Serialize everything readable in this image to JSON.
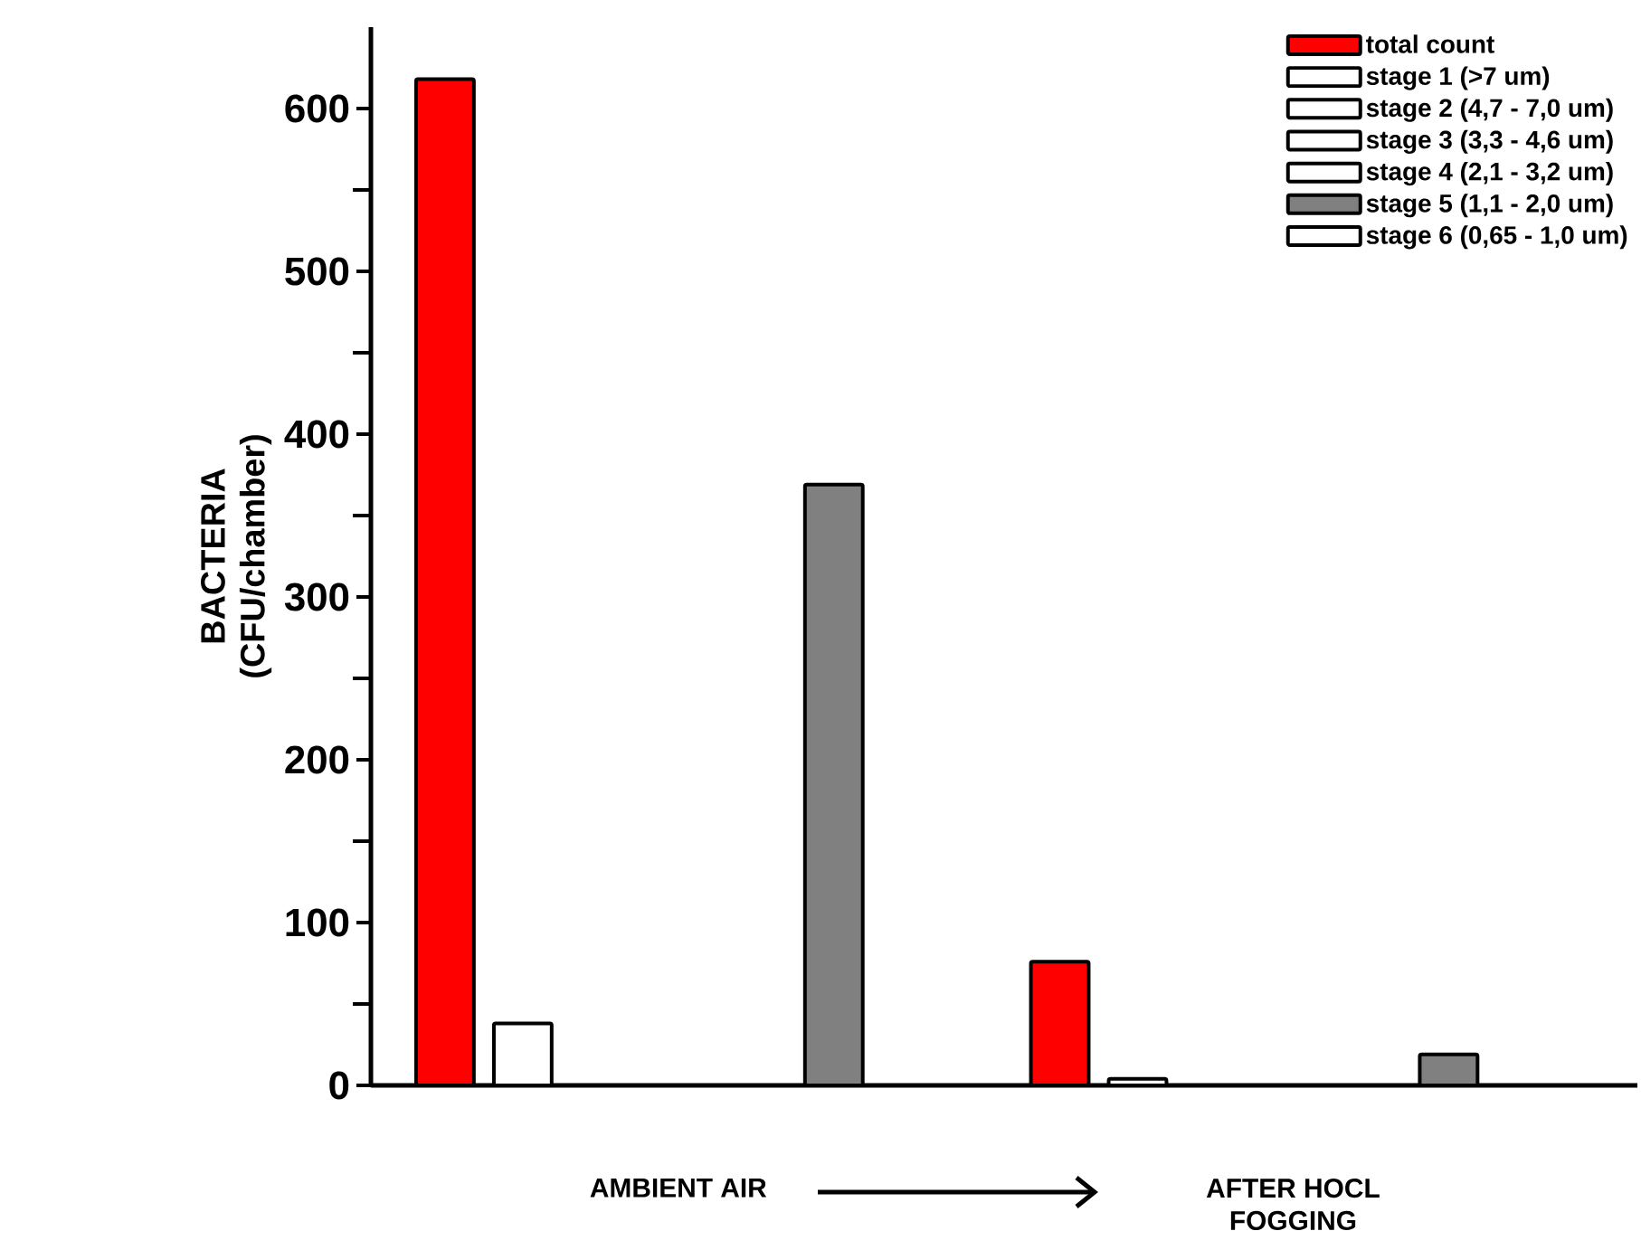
{
  "chart_data": {
    "type": "bar",
    "ylabel": "BACTERIA\n(CFU/chamber)",
    "categories": [
      "AMBIENT AIR",
      "AFTER HOCL\nFOGGING"
    ],
    "ylim": [
      0,
      650
    ],
    "yticks": [
      0,
      100,
      200,
      300,
      400,
      500,
      600
    ],
    "legend": "top right",
    "grid": false,
    "series": [
      {
        "name": "total count",
        "color": "#ff0000",
        "values": [
          618,
          76
        ]
      },
      {
        "name": "stage 1 (>7 um)",
        "color": "#ffffff",
        "values": [
          38,
          4
        ]
      },
      {
        "name": "stage 2 (4,7 - 7,0 um)",
        "color": "#ffffff",
        "values": [
          0,
          0
        ]
      },
      {
        "name": "stage 3 (3,3 - 4,6 um)",
        "color": "#ffffff",
        "values": [
          0,
          0
        ]
      },
      {
        "name": "stage 4 (2,1 - 3,2 um)",
        "color": "#ffffff",
        "values": [
          0,
          0
        ]
      },
      {
        "name": "stage 5 (1,1 - 2,0 um)",
        "color": "#808080",
        "values": [
          369,
          19
        ]
      },
      {
        "name": "stage 6 (0,65 - 1,0 um)",
        "color": "#ffffff",
        "values": [
          0,
          0
        ]
      }
    ]
  }
}
